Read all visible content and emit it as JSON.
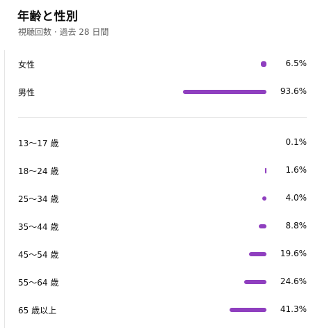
{
  "header": {
    "title": "年齢と性別",
    "subtitle": "視聴回数 · 過去 28 日間"
  },
  "colors": {
    "bar": "#8f3fbf"
  },
  "gender": [
    {
      "label": "女性",
      "value": "6.5%",
      "percent": 6.5
    },
    {
      "label": "男性",
      "value": "93.6%",
      "percent": 93.6
    }
  ],
  "age": [
    {
      "label": "13〜17 歳",
      "value": "0.1%",
      "percent": 0.1
    },
    {
      "label": "18〜24 歳",
      "value": "1.6%",
      "percent": 1.6
    },
    {
      "label": "25〜34 歳",
      "value": "4.0%",
      "percent": 4.0
    },
    {
      "label": "35〜44 歳",
      "value": "8.8%",
      "percent": 8.8
    },
    {
      "label": "45〜54 歳",
      "value": "19.6%",
      "percent": 19.6
    },
    {
      "label": "55〜64 歳",
      "value": "24.6%",
      "percent": 24.6
    },
    {
      "label": "65 歳以上",
      "value": "41.3%",
      "percent": 41.3
    }
  ]
}
